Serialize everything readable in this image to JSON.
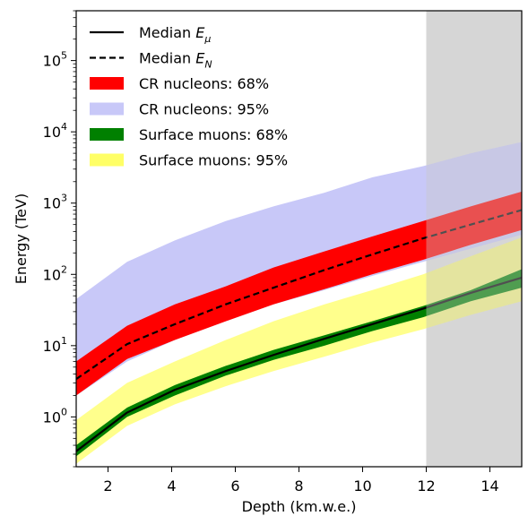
{
  "chart_data": {
    "type": "area",
    "xlabel": "Depth (km.w.e.)",
    "ylabel": "Energy (TeV)",
    "xlim": [
      1,
      15
    ],
    "ylim": [
      0.2,
      500000
    ],
    "yscale": "log",
    "grid": false,
    "legend_position": "top-left",
    "x_ticks": [
      2,
      4,
      6,
      8,
      10,
      12,
      14
    ],
    "x_tick_labels": [
      "2",
      "4",
      "6",
      "8",
      "10",
      "12",
      "14"
    ],
    "y_ticks": [
      1,
      10,
      100,
      1000,
      10000,
      100000
    ],
    "y_tick_labels": [
      {
        "base": "10",
        "exp": "0"
      },
      {
        "base": "10",
        "exp": "1"
      },
      {
        "base": "10",
        "exp": "2"
      },
      {
        "base": "10",
        "exp": "3"
      },
      {
        "base": "10",
        "exp": "4"
      },
      {
        "base": "10",
        "exp": "5"
      }
    ],
    "shaded_region": {
      "x": [
        12,
        15
      ],
      "color": "#e0e0e0"
    },
    "x": [
      1,
      2.6,
      4.1,
      5.7,
      7.2,
      8.8,
      10.3,
      11.9,
      13.4,
      15
    ],
    "series": [
      {
        "name": "CR nucleons: 95%",
        "kind": "band",
        "color": "#c8c8f8",
        "lower": [
          2.0,
          6.0,
          12.0,
          22.0,
          38.0,
          60.0,
          95.0,
          150.0,
          230.0,
          360.0
        ],
        "upper": [
          45.0,
          150.0,
          300.0,
          560.0,
          900.0,
          1400.0,
          2300.0,
          3300.0,
          5000.0,
          7200.0
        ]
      },
      {
        "name": "Surface muons: 95%",
        "kind": "band",
        "color": "#ffff66",
        "alpha": 0.75,
        "lower": [
          0.22,
          0.75,
          1.5,
          2.7,
          4.4,
          7.0,
          11.0,
          17.0,
          27.0,
          42.0
        ],
        "upper": [
          0.9,
          3.0,
          6.0,
          12.0,
          22.0,
          38.0,
          60.0,
          100.0,
          180.0,
          330.0
        ]
      },
      {
        "name": "CR nucleons: 68%",
        "kind": "band",
        "color": "#ff0000",
        "lower": [
          2.0,
          6.5,
          12.0,
          22.0,
          38.0,
          62.0,
          100.0,
          160.0,
          260.0,
          420.0
        ],
        "upper": [
          6.0,
          19.0,
          38.0,
          68.0,
          125.0,
          210.0,
          340.0,
          560.0,
          900.0,
          1450.0
        ]
      },
      {
        "name": "Surface muons: 68%",
        "kind": "band",
        "color": "#008000",
        "lower": [
          0.28,
          1.0,
          2.0,
          3.8,
          6.3,
          10.0,
          16.0,
          25.0,
          42.0,
          65.0
        ],
        "upper": [
          0.4,
          1.35,
          2.8,
          5.2,
          8.7,
          14.0,
          22.0,
          36.0,
          60.0,
          118.0
        ]
      },
      {
        "name": "Median E_N",
        "kind": "line",
        "dash": true,
        "color": "#000000",
        "values": [
          3.4,
          10.5,
          20.0,
          38.0,
          65.0,
          115.0,
          190.0,
          320.0,
          500.0,
          800.0
        ]
      },
      {
        "name": "Median E_μ",
        "kind": "line",
        "dash": false,
        "color": "#000000",
        "values": [
          0.33,
          1.15,
          2.4,
          4.4,
          7.4,
          12.5,
          20.0,
          33.0,
          55.0,
          90.0
        ]
      }
    ],
    "legend": [
      {
        "kind": "line",
        "dash": false,
        "color": "#000000",
        "text": "Median ",
        "math": "E",
        "sub": "μ"
      },
      {
        "kind": "line",
        "dash": true,
        "color": "#000000",
        "text": "Median ",
        "math": "E",
        "sub": "N"
      },
      {
        "kind": "patch",
        "color": "#ff0000",
        "text": "CR nucleons: 68%"
      },
      {
        "kind": "patch",
        "color": "#c8c8f8",
        "text": "CR nucleons: 95%"
      },
      {
        "kind": "patch",
        "color": "#008000",
        "text": "Surface muons: 68%"
      },
      {
        "kind": "patch",
        "color": "#ffff66",
        "text": "Surface muons: 95%"
      }
    ]
  }
}
